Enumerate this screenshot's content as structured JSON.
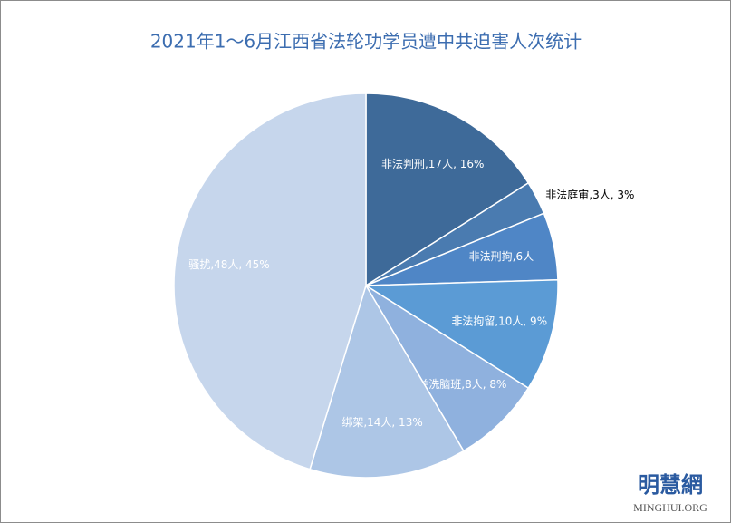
{
  "chart_data": {
    "type": "pie",
    "title": "2021年1～6月江西省法轮功学员遭中共迫害人次统计",
    "labels": [
      "非法判刑,17人, 16%",
      "非法庭审,3人, 3%",
      "非法刑拘,6人",
      "非法拘留,10人, 9%",
      "关洗脑班,8人, 8%",
      "绑架,14人, 13%",
      "骚扰,48人, 45%"
    ],
    "values": [
      17,
      3,
      6,
      10,
      8,
      14,
      48
    ],
    "colors": [
      "#3e6a99",
      "#4a7bb0",
      "#4f86c6",
      "#5b9bd5",
      "#8fb1de",
      "#adc6e6",
      "#c6d6ec"
    ],
    "watermark": {
      "name": "明慧網",
      "site": "MINGHUI.ORG"
    }
  }
}
